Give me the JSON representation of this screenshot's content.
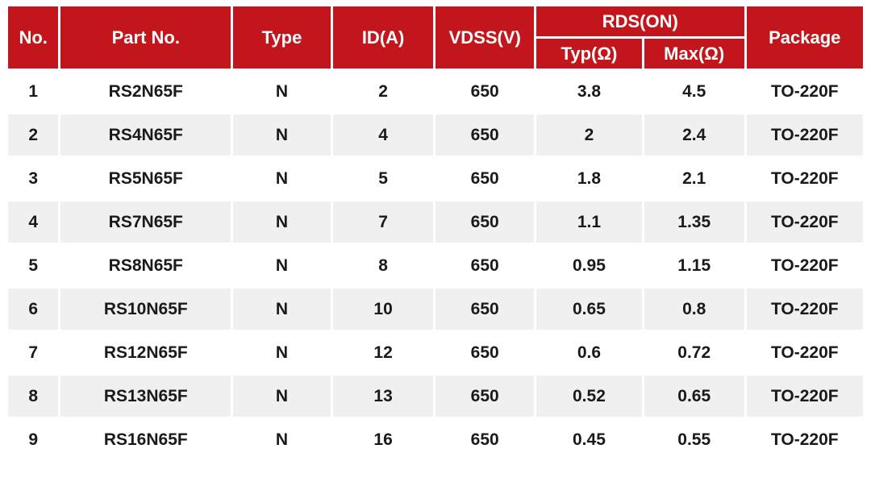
{
  "colors": {
    "header_bg": "#c3161c",
    "header_text": "#ffffff",
    "row_bg": "#ffffff",
    "row_alt_bg": "#f0f0f0",
    "body_text": "#1a1a1a",
    "gridline": "#ffffff"
  },
  "table": {
    "headers": {
      "no": "No.",
      "part": "Part No.",
      "type": "Type",
      "id": "ID(A)",
      "vdss": "VDSS(V)",
      "rdson": "RDS(ON)",
      "typ": "Typ(Ω)",
      "max": "Max(Ω)",
      "pkg": "Package"
    },
    "rows": [
      {
        "no": "1",
        "part": "RS2N65F",
        "type": "N",
        "id": "2",
        "vdss": "650",
        "typ": "3.8",
        "max": "4.5",
        "pkg": "TO-220F"
      },
      {
        "no": "2",
        "part": "RS4N65F",
        "type": "N",
        "id": "4",
        "vdss": "650",
        "typ": "2",
        "max": "2.4",
        "pkg": "TO-220F"
      },
      {
        "no": "3",
        "part": "RS5N65F",
        "type": "N",
        "id": "5",
        "vdss": "650",
        "typ": "1.8",
        "max": "2.1",
        "pkg": "TO-220F"
      },
      {
        "no": "4",
        "part": "RS7N65F",
        "type": "N",
        "id": "7",
        "vdss": "650",
        "typ": "1.1",
        "max": "1.35",
        "pkg": "TO-220F"
      },
      {
        "no": "5",
        "part": "RS8N65F",
        "type": "N",
        "id": "8",
        "vdss": "650",
        "typ": "0.95",
        "max": "1.15",
        "pkg": "TO-220F"
      },
      {
        "no": "6",
        "part": "RS10N65F",
        "type": "N",
        "id": "10",
        "vdss": "650",
        "typ": "0.65",
        "max": "0.8",
        "pkg": "TO-220F"
      },
      {
        "no": "7",
        "part": "RS12N65F",
        "type": "N",
        "id": "12",
        "vdss": "650",
        "typ": "0.6",
        "max": "0.72",
        "pkg": "TO-220F"
      },
      {
        "no": "8",
        "part": "RS13N65F",
        "type": "N",
        "id": "13",
        "vdss": "650",
        "typ": "0.52",
        "max": "0.65",
        "pkg": "TO-220F"
      },
      {
        "no": "9",
        "part": "RS16N65F",
        "type": "N",
        "id": "16",
        "vdss": "650",
        "typ": "0.45",
        "max": "0.55",
        "pkg": "TO-220F"
      }
    ]
  }
}
